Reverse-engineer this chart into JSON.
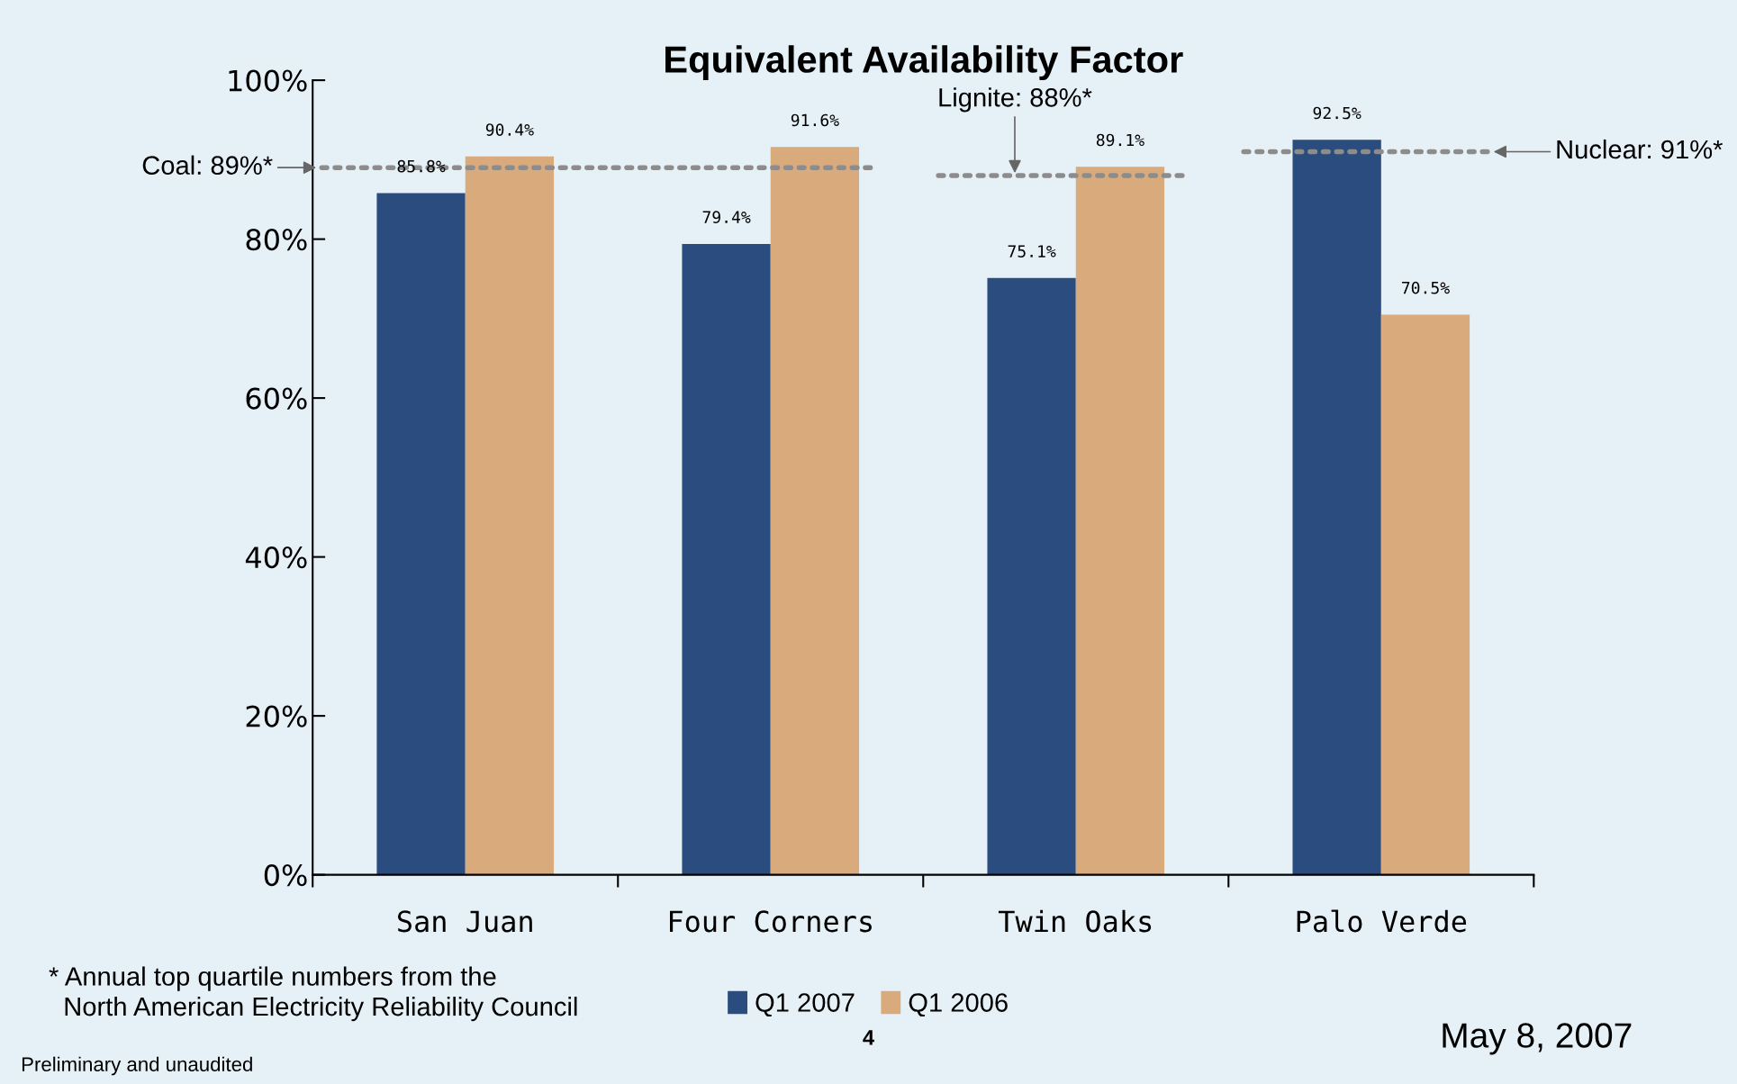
{
  "chart_data": {
    "type": "bar",
    "title": "Equivalent Availability Factor",
    "categories": [
      "San Juan",
      "Four Corners",
      "Twin Oaks",
      "Palo Verde"
    ],
    "series": [
      {
        "name": "Q1 2007",
        "color": "#2b4c7e",
        "values": [
          85.8,
          79.4,
          75.1,
          92.5
        ],
        "value_labels": [
          "85.8%",
          "79.4%",
          "75.1%",
          "92.5%"
        ]
      },
      {
        "name": "Q1 2006",
        "color": "#d9aa7c",
        "values": [
          90.4,
          91.6,
          89.1,
          70.5
        ],
        "value_labels": [
          "90.4%",
          "91.6%",
          "89.1%",
          "70.5%"
        ]
      }
    ],
    "ref_lines": [
      {
        "axis": "y",
        "value": 89,
        "label": "Coal: 89%*",
        "color": "#8c8c8c",
        "line_style": "dotted"
      },
      {
        "axis": "y",
        "value": 88,
        "label": "Lignite: 88%*",
        "color": "#8c8c8c",
        "line_style": "dotted"
      },
      {
        "axis": "y",
        "value": 91,
        "label": "Nuclear: 91%*",
        "color": "#8c8c8c",
        "line_style": "dotted"
      }
    ],
    "ylim": [
      0,
      100
    ],
    "yticks": [
      {
        "value": 0,
        "label": "0%"
      },
      {
        "value": 20,
        "label": "20%"
      },
      {
        "value": 40,
        "label": "40%"
      },
      {
        "value": 60,
        "label": "60%"
      },
      {
        "value": 80,
        "label": "80%"
      },
      {
        "value": 100,
        "label": "100%"
      }
    ],
    "grid": false,
    "legend": "bottom",
    "annotations": [
      "* Annual top quartile numbers from the\n  North American Electricity Reliability Council",
      "Preliminary and unaudited",
      "4",
      "May 8, 2007"
    ]
  }
}
